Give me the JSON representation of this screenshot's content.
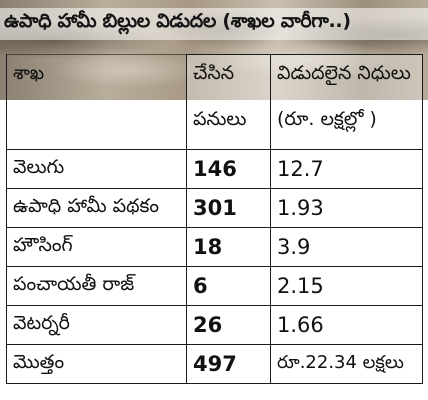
{
  "title": "ఉపాధి హామీ బిల్లుల విడుదల (శాఖల వారీగా..)",
  "table": {
    "headers": {
      "dept": "శాఖ",
      "works_line1": "చేసిన",
      "works_line2": "పనులు",
      "funds_line1": "విడుదలైన నిధులు",
      "funds_line2": "(రూ. లక్షల్లో )"
    },
    "rows": [
      {
        "dept": "వెలుగు",
        "works": "146",
        "funds": "12.7"
      },
      {
        "dept": "ఉపాధి హామీ పథకం",
        "works": "301",
        "funds": "1.93"
      },
      {
        "dept": "హౌసింగ్",
        "works": "18",
        "funds": "3.9"
      },
      {
        "dept": "పంచాయతీ రాజ్",
        "works": "6",
        "funds": "2.15"
      },
      {
        "dept": "వెటర్నరీ",
        "works": "26",
        "funds": "1.66"
      },
      {
        "dept": "మొత్తం",
        "works": "497",
        "funds": "రూ.22.34 లక్షలు"
      }
    ]
  }
}
